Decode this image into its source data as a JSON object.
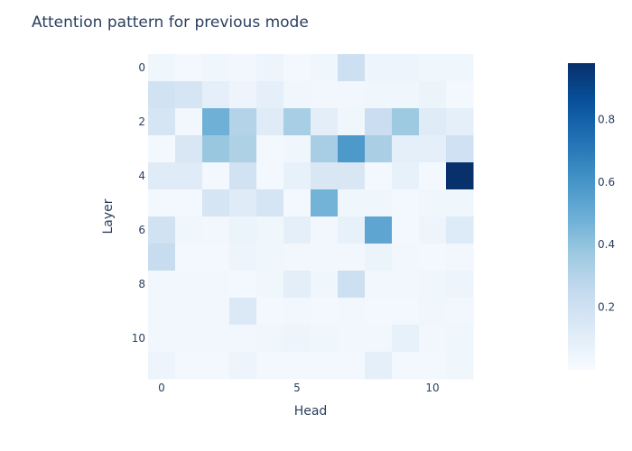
{
  "chart_data": {
    "type": "heatmap",
    "title": "Attention pattern for previous mode",
    "xlabel": "Head",
    "ylabel": "Layer",
    "x_tick_labels": [
      "0",
      "5",
      "10"
    ],
    "y_tick_labels": [
      "0",
      "2",
      "4",
      "6",
      "8",
      "10"
    ],
    "x_tick_values": [
      0,
      5,
      10
    ],
    "y_tick_values": [
      0,
      2,
      4,
      6,
      8,
      10
    ],
    "n_rows": 12,
    "n_cols": 12,
    "values": [
      [
        0.04,
        0.02,
        0.04,
        0.03,
        0.05,
        0.02,
        0.04,
        0.21,
        0.05,
        0.05,
        0.04,
        0.04
      ],
      [
        0.19,
        0.17,
        0.09,
        0.05,
        0.09,
        0.04,
        0.03,
        0.03,
        0.04,
        0.04,
        0.06,
        0.02
      ],
      [
        0.17,
        0.03,
        0.48,
        0.3,
        0.12,
        0.34,
        0.1,
        0.04,
        0.22,
        0.37,
        0.12,
        0.09
      ],
      [
        0.02,
        0.15,
        0.38,
        0.32,
        0.02,
        0.04,
        0.34,
        0.58,
        0.33,
        0.09,
        0.09,
        0.2
      ],
      [
        0.12,
        0.12,
        0.02,
        0.19,
        0.02,
        0.08,
        0.15,
        0.15,
        0.02,
        0.08,
        0.02,
        0.98
      ],
      [
        0.02,
        0.02,
        0.17,
        0.12,
        0.17,
        0.02,
        0.47,
        0.04,
        0.04,
        0.02,
        0.04,
        0.04
      ],
      [
        0.19,
        0.04,
        0.03,
        0.06,
        0.04,
        0.09,
        0.03,
        0.08,
        0.53,
        0.02,
        0.05,
        0.13
      ],
      [
        0.24,
        0.02,
        0.02,
        0.05,
        0.04,
        0.03,
        0.03,
        0.03,
        0.06,
        0.03,
        0.02,
        0.03
      ],
      [
        0.03,
        0.03,
        0.03,
        0.02,
        0.04,
        0.1,
        0.04,
        0.21,
        0.03,
        0.03,
        0.04,
        0.05
      ],
      [
        0.03,
        0.03,
        0.03,
        0.14,
        0.02,
        0.03,
        0.02,
        0.03,
        0.02,
        0.02,
        0.04,
        0.03
      ],
      [
        0.03,
        0.03,
        0.03,
        0.03,
        0.04,
        0.05,
        0.04,
        0.03,
        0.03,
        0.08,
        0.03,
        0.04
      ],
      [
        0.05,
        0.02,
        0.02,
        0.05,
        0.02,
        0.02,
        0.02,
        0.02,
        0.09,
        0.02,
        0.02,
        0.04
      ]
    ],
    "colorscale": "Blues",
    "color_min": 0.0,
    "color_max": 0.98,
    "colorbar_tick_values": [
      0.2,
      0.4,
      0.6,
      0.8
    ],
    "colorbar_tick_labels": [
      "0.2",
      "0.4",
      "0.6",
      "0.8"
    ],
    "grid": false,
    "legend": "colorbar-right"
  }
}
